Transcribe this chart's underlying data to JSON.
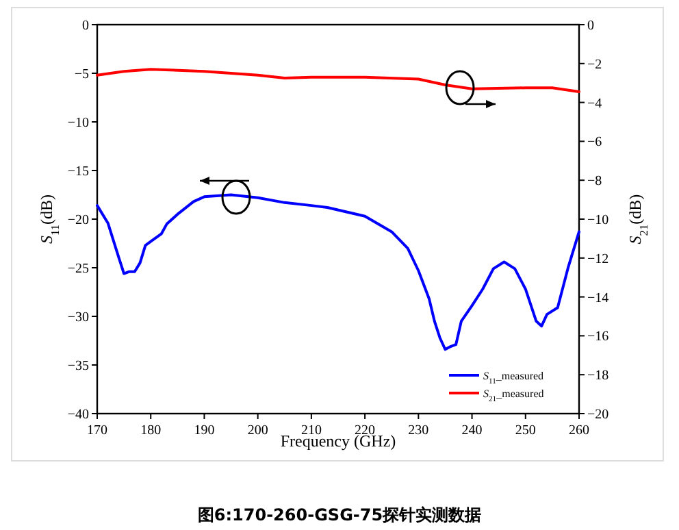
{
  "chart_data": {
    "type": "line",
    "xlabel": "Frequency (GHz)",
    "ylabel": "S$_{11}$(dB)",
    "y2label": "S$_{21}$(dB)",
    "xlim": [
      170,
      260
    ],
    "xticks": [
      170,
      180,
      190,
      200,
      210,
      220,
      230,
      240,
      250,
      260
    ],
    "ylim": [
      -40,
      0
    ],
    "yticks": [
      -40,
      -35,
      -30,
      -25,
      -20,
      -15,
      -10,
      -5,
      0
    ],
    "y2lim": [
      -20,
      0
    ],
    "y2ticks": [
      -20,
      -18,
      -16,
      -14,
      -12,
      -10,
      -8,
      -6,
      -4,
      -2,
      0
    ],
    "grid": false,
    "legend": "bottom right",
    "marker": "none",
    "line_style": "solid",
    "series": [
      {
        "name": "S$_{11}$_measured",
        "color": "#0000ff",
        "x": [
          170,
          172,
          174,
          175,
          176,
          177,
          178,
          179,
          180,
          182,
          183,
          185,
          188,
          190,
          195,
          200,
          205,
          210,
          213,
          220,
          225,
          228,
          230,
          232,
          233,
          234,
          235,
          236,
          237,
          238,
          240,
          242,
          244,
          246,
          248,
          250,
          252,
          253,
          254,
          256,
          258,
          260
        ],
        "values": [
          -18.6,
          -20.4,
          -23.9,
          -25.6,
          -25.4,
          -25.4,
          -24.5,
          -22.7,
          -22.3,
          -21.5,
          -20.5,
          -19.5,
          -18.2,
          -17.7,
          -17.5,
          -17.8,
          -18.3,
          -18.6,
          -18.8,
          -19.7,
          -21.3,
          -23.0,
          -25.3,
          -28.2,
          -30.5,
          -32.2,
          -33.4,
          -33.1,
          -32.9,
          -30.5,
          -28.9,
          -27.2,
          -25.1,
          -24.4,
          -25.1,
          -27.2,
          -30.5,
          -31.0,
          -29.8,
          -29.1,
          -24.9,
          -21.3
        ]
      },
      {
        "name": "S$_{21}$_measured",
        "color": "#ff0000",
        "axis": "y2",
        "x": [
          170,
          175,
          180,
          190,
          200,
          205,
          210,
          220,
          230,
          235,
          240,
          250,
          255,
          260
        ],
        "values": [
          -2.6,
          -2.4,
          -2.3,
          -2.4,
          -2.6,
          -2.75,
          -2.7,
          -2.7,
          -2.8,
          -3.1,
          -3.3,
          -3.25,
          -3.25,
          -3.45
        ]
      }
    ],
    "annotations": [
      "图6:170-260-GSG-75探针实测数据"
    ]
  }
}
